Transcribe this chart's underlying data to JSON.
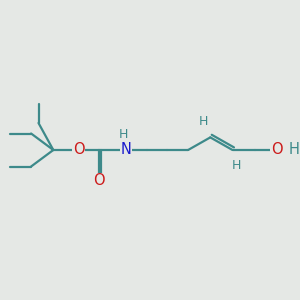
{
  "background_color": "#e5e8e5",
  "bond_color": "#3d8a8a",
  "N_color": "#1a1acc",
  "O_color": "#cc1a1a",
  "H_color": "#3d8a8a",
  "bond_width": 1.6,
  "font_size": 10.5,
  "font_size_small": 9.0,
  "figsize": [
    3.0,
    3.0
  ],
  "dpi": 100,
  "xlim": [
    0.0,
    10.0
  ],
  "ylim": [
    0.0,
    10.0
  ]
}
